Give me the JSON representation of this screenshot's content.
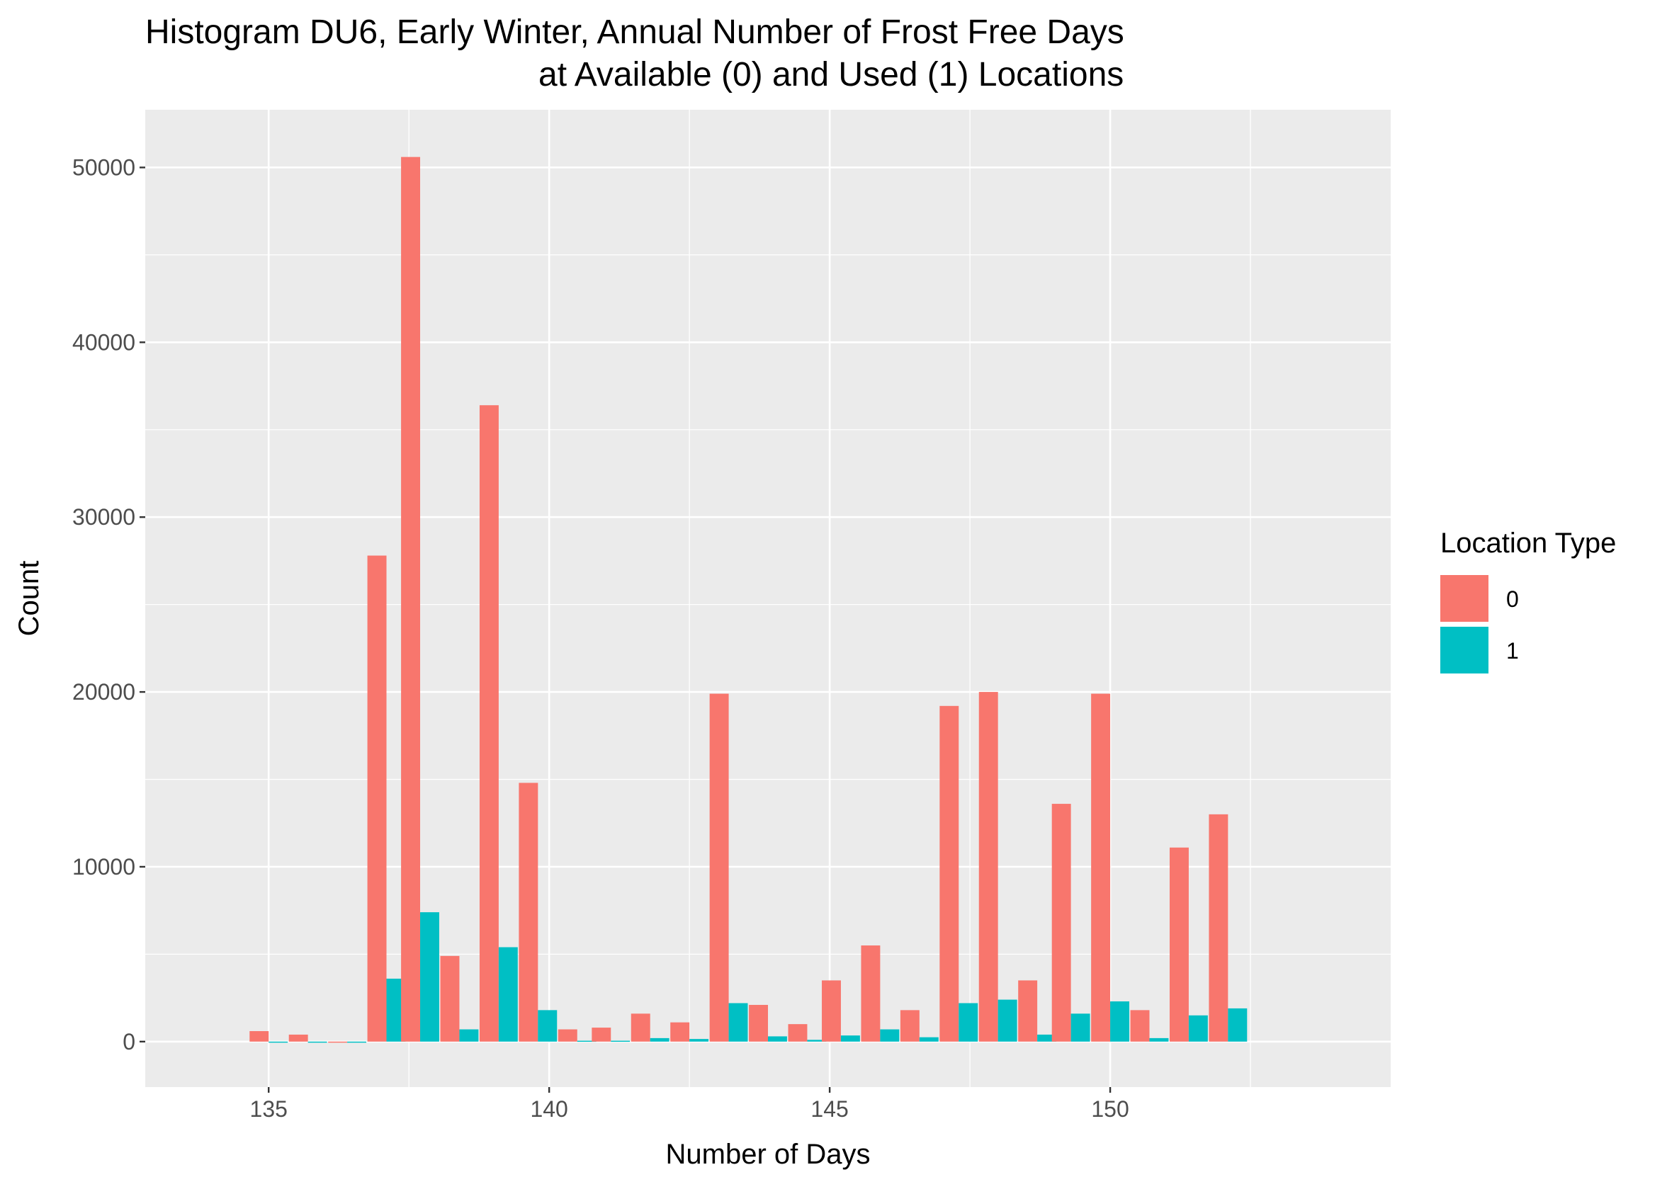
{
  "chart_data": {
    "type": "bar",
    "title_line1": "Histogram DU6, Early Winter, Annual Number of Frost Free Days",
    "title_line2": "at Available (0) and Used (1) Locations",
    "xlabel": "Number of Days",
    "ylabel": "Count",
    "legend_title": "Location Type",
    "legend_position": "right",
    "grid": true,
    "xlim": [
      132.8,
      155.0
    ],
    "ylim": [
      -2600,
      53300
    ],
    "x_ticks": [
      135,
      140,
      145,
      150
    ],
    "x_tick_labels": [
      "135",
      "140",
      "145",
      "150"
    ],
    "y_ticks": [
      0,
      10000,
      20000,
      30000,
      40000,
      50000
    ],
    "y_tick_labels": [
      "0",
      "10000",
      "20000",
      "30000",
      "40000",
      "50000"
    ],
    "bin_width": 0.68,
    "x": [
      135.0,
      135.7,
      136.4,
      137.1,
      137.7,
      138.4,
      139.1,
      139.8,
      140.5,
      141.1,
      141.8,
      142.5,
      143.2,
      143.9,
      144.6,
      145.2,
      145.9,
      146.6,
      147.3,
      148.0,
      148.7,
      149.3,
      150.0,
      150.7,
      151.4,
      152.1
    ],
    "series": [
      {
        "name": "0",
        "color": "#F8766D",
        "values": [
          600,
          400,
          0,
          27800,
          50600,
          4900,
          36400,
          14800,
          700,
          800,
          1600,
          1100,
          19900,
          2100,
          1000,
          3500,
          5500,
          1800,
          19200,
          20000,
          3500,
          13600,
          19900,
          1800,
          11100,
          13000
        ]
      },
      {
        "name": "1",
        "color": "#00BFC4",
        "values": [
          0,
          0,
          0,
          3600,
          7400,
          700,
          5400,
          1800,
          50,
          50,
          200,
          150,
          2200,
          300,
          100,
          350,
          700,
          250,
          2200,
          2400,
          400,
          1600,
          2300,
          200,
          1500,
          1900
        ]
      }
    ]
  }
}
